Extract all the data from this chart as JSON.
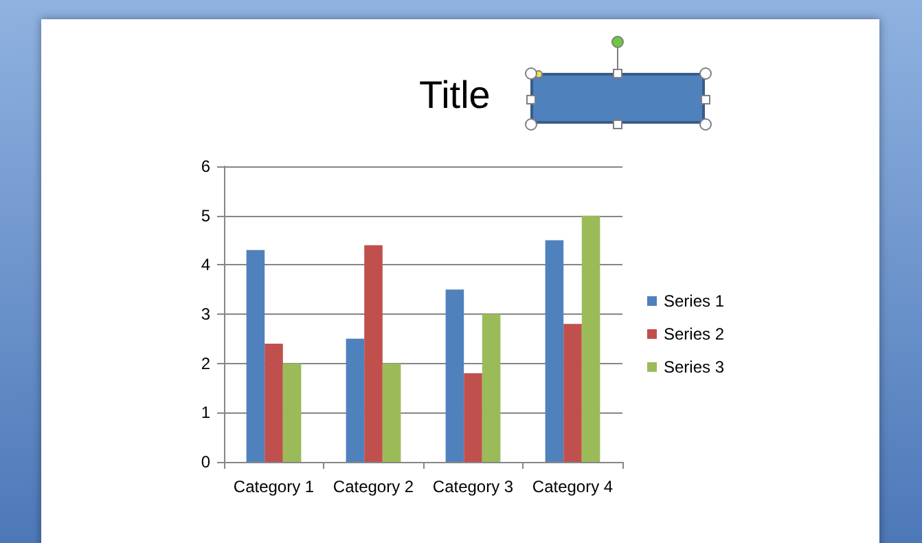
{
  "chart_data": {
    "type": "bar",
    "title": "Title",
    "categories": [
      "Category 1",
      "Category 2",
      "Category 3",
      "Category 4"
    ],
    "series": [
      {
        "name": "Series 1",
        "color": "#4f81bd",
        "values": [
          4.3,
          2.5,
          3.5,
          4.5
        ]
      },
      {
        "name": "Series 2",
        "color": "#c0504d",
        "values": [
          2.4,
          4.4,
          1.8,
          2.8
        ]
      },
      {
        "name": "Series 3",
        "color": "#9bbb59",
        "values": [
          2,
          2,
          3,
          5
        ]
      }
    ],
    "ylim": [
      0,
      6
    ],
    "yticks": [
      0,
      1,
      2,
      3,
      4,
      5,
      6
    ],
    "grid": "y",
    "legend": "right"
  }
}
